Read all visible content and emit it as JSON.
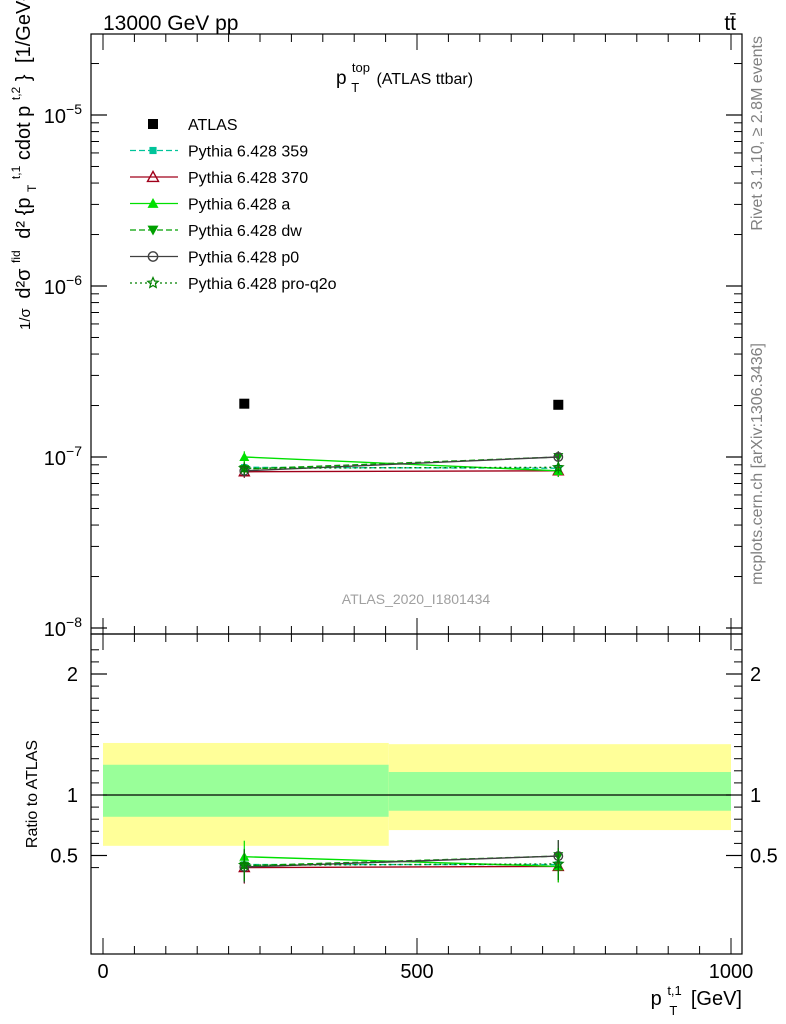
{
  "header": {
    "left": "13000 GeV pp",
    "right": "tt̄"
  },
  "side_labels": {
    "rivet": "Rivet 3.1.10, ≥ 2.8M events",
    "mcplots": "mcplots.cern.ch [arXiv:1306.3436]"
  },
  "watermark": "ATLAS_2020_I1801434",
  "colors": {
    "ATLAS": "#000000",
    "p359": "#00c49a",
    "p370": "#a0001a",
    "a": "#00e000",
    "dw": "#00a000",
    "p0": "#404040",
    "proq2o": "#008000",
    "band_inner": "#99ff99",
    "band_outer": "#ffff99"
  },
  "chart_data": [
    {
      "type": "scatter",
      "panel": "main",
      "title": "p_T^top (ATLAS ttbar)",
      "title_parts": {
        "p": "p",
        "sup": "top",
        "sub": "T",
        "rest": "(ATLAS ttbar)"
      },
      "ylabel": "d²σ^{fid} / d{p_T^{t,1} cdot p_T^{t,2}} [1/GeV²]",
      "ylabel_parts": {
        "frac": "1/σ",
        "main": "d²σ",
        "sup": "fid",
        "den": "d² {p",
        "den_sub": "T",
        "den_sup": "t,1",
        "den_mid": " cdot p",
        "den_sup2": "t,2",
        "den_end": "}",
        "unit": "[1/GeV²]"
      },
      "yscale": "log",
      "ylim": [
        1e-08,
        3e-05
      ],
      "xlim": [
        -20,
        1000
      ],
      "y_ticks": [
        {
          "value": 1e-08,
          "label": "10⁻⁸",
          "base": "10",
          "exp": "−8"
        },
        {
          "value": 1e-07,
          "label": "10⁻⁷",
          "base": "10",
          "exp": "−7"
        },
        {
          "value": 1e-06,
          "label": "10⁻⁶",
          "base": "10",
          "exp": "−6"
        },
        {
          "value": 1e-05,
          "label": "10⁻⁵",
          "base": "10",
          "exp": "−5"
        }
      ],
      "x": [
        225,
        725
      ],
      "series": [
        {
          "name": "ATLAS",
          "key": "ATLAS",
          "marker": "square",
          "line": "none",
          "values": [
            2.05e-07,
            2.02e-07
          ]
        },
        {
          "name": "Pythia 6.428 359",
          "key": "p359",
          "marker": "square-small",
          "line": "dashed",
          "values": [
            8.7e-08,
            8.6e-08
          ]
        },
        {
          "name": "Pythia 6.428 370",
          "key": "p370",
          "marker": "triangle-open",
          "line": "solid",
          "values": [
            8.2e-08,
            8.3e-08
          ]
        },
        {
          "name": "Pythia 6.428 a",
          "key": "a",
          "marker": "triangle",
          "line": "solid",
          "values": [
            1e-07,
            8.3e-08
          ]
        },
        {
          "name": "Pythia 6.428 dw",
          "key": "dw",
          "marker": "triangle-down",
          "line": "dashed",
          "values": [
            8.5e-08,
            1e-07
          ]
        },
        {
          "name": "Pythia 6.428 p0",
          "key": "p0",
          "marker": "circle-open",
          "line": "solid",
          "values": [
            8.3e-08,
            1e-07
          ]
        },
        {
          "name": "Pythia 6.428 pro-q2o",
          "key": "proq2o",
          "marker": "star",
          "line": "dotted",
          "values": [
            8.6e-08,
            8.7e-08
          ]
        }
      ],
      "legend": {
        "placement": "top-left"
      }
    },
    {
      "type": "line",
      "panel": "ratio",
      "ylabel": "Ratio to ATLAS",
      "xlabel": "p_T^{t,1} [GeV]",
      "xlabel_parts": {
        "p": "p",
        "sub": "T",
        "sup": "t,1",
        "unit": "[GeV]"
      },
      "xlim": [
        -20,
        1000
      ],
      "ylim": [
        0.35,
        2.3
      ],
      "x_ticks": [
        0,
        500,
        1000
      ],
      "y_ticks": [
        0.5,
        1,
        2
      ],
      "bands": [
        {
          "x_range": [
            0,
            455
          ],
          "inner": [
            0.82,
            1.25
          ],
          "outer": [
            0.58,
            1.43
          ]
        },
        {
          "x_range": [
            455,
            1000
          ],
          "inner": [
            0.87,
            1.19
          ],
          "outer": [
            0.71,
            1.42
          ]
        }
      ],
      "x": [
        225,
        725
      ],
      "series": [
        {
          "key": "p359",
          "values": [
            0.425,
            0.425
          ]
        },
        {
          "key": "p370",
          "values": [
            0.4,
            0.41
          ]
        },
        {
          "key": "a",
          "values": [
            0.49,
            0.41
          ]
        },
        {
          "key": "dw",
          "values": [
            0.415,
            0.495
          ]
        },
        {
          "key": "p0",
          "values": [
            0.405,
            0.495
          ]
        },
        {
          "key": "proq2o",
          "values": [
            0.42,
            0.43
          ]
        }
      ]
    }
  ]
}
